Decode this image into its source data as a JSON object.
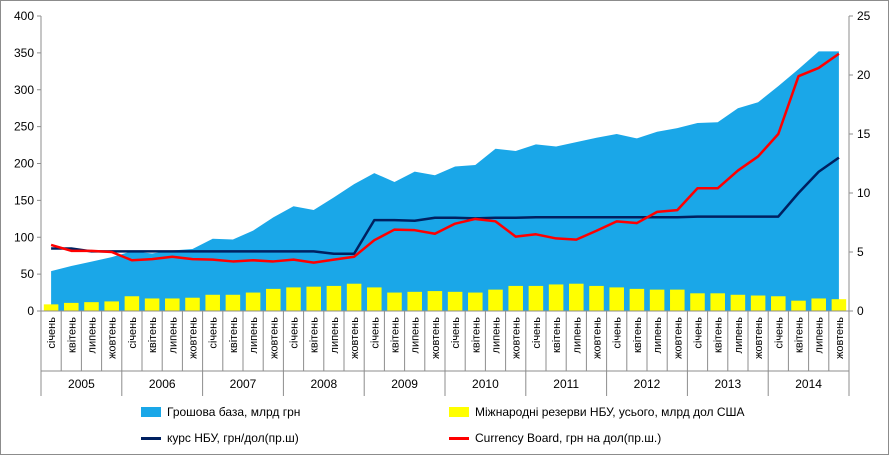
{
  "chart_data": {
    "type": "bar",
    "categories_quarters": [
      "січень",
      "квітень",
      "липень",
      "жовтень"
    ],
    "years": [
      "2005",
      "2006",
      "2007",
      "2008",
      "2009",
      "2010",
      "2011",
      "2012",
      "2013",
      "2014"
    ],
    "y_left": {
      "min": 0,
      "max": 400,
      "ticks": [
        "0",
        "50",
        "100",
        "150",
        "200",
        "250",
        "300",
        "350",
        "400"
      ]
    },
    "y_right": {
      "min": 0,
      "max": 25,
      "ticks": [
        "0",
        "5",
        "10",
        "15",
        "20",
        "25"
      ]
    },
    "grid": false,
    "legend_position": "bottom",
    "series": [
      {
        "name": "Грошова база, млрд грн",
        "type": "area",
        "axis": "left",
        "color": "#1aa7e8",
        "values": [
          54,
          61,
          67,
          73,
          81,
          78,
          82,
          84,
          98,
          97,
          109,
          127,
          142,
          137,
          154,
          172,
          187,
          175,
          189,
          184,
          196,
          198,
          220,
          217,
          226,
          223,
          229,
          235,
          240,
          234,
          243,
          248,
          255,
          256,
          275,
          283,
          305,
          328,
          352,
          352
        ]
      },
      {
        "name": "Міжнародні резерви НБУ, усього, млрд дол США",
        "type": "bar",
        "axis": "left",
        "color": "#ffff00",
        "values": [
          9,
          11,
          12,
          13,
          20,
          17,
          17,
          18,
          22,
          22,
          25,
          30,
          32,
          33,
          34,
          37,
          32,
          25,
          26,
          27,
          26,
          25,
          29,
          34,
          34,
          36,
          37,
          34,
          32,
          30,
          29,
          29,
          24,
          24,
          22,
          21,
          20,
          14,
          17,
          16
        ]
      },
      {
        "name": "курс НБУ, грн/дол(пр.ш)",
        "type": "line",
        "axis": "right",
        "color": "#002060",
        "values": [
          5.3,
          5.3,
          5.05,
          5.05,
          5.05,
          5.05,
          5.05,
          5.05,
          5.05,
          5.05,
          5.05,
          5.05,
          5.05,
          5.05,
          4.85,
          4.85,
          7.7,
          7.7,
          7.65,
          7.9,
          7.9,
          7.85,
          7.9,
          7.9,
          7.95,
          7.95,
          7.95,
          7.95,
          7.95,
          7.95,
          7.95,
          7.95,
          8.0,
          8.0,
          8.0,
          8.0,
          8.0,
          10.0,
          11.8,
          13.0
        ]
      },
      {
        "name": "Currency Board, грн на дол(пр.ш.)",
        "type": "line",
        "axis": "right",
        "color": "#ff0000",
        "values": [
          5.6,
          5.1,
          5.1,
          5.0,
          4.3,
          4.4,
          4.6,
          4.4,
          4.35,
          4.2,
          4.3,
          4.2,
          4.35,
          4.1,
          4.35,
          4.6,
          6.0,
          6.9,
          6.85,
          6.55,
          7.4,
          7.8,
          7.6,
          6.3,
          6.5,
          6.15,
          6.05,
          6.8,
          7.6,
          7.45,
          8.4,
          8.55,
          10.4,
          10.4,
          11.9,
          13.1,
          15.0,
          19.9,
          20.6,
          21.8
        ]
      }
    ]
  }
}
